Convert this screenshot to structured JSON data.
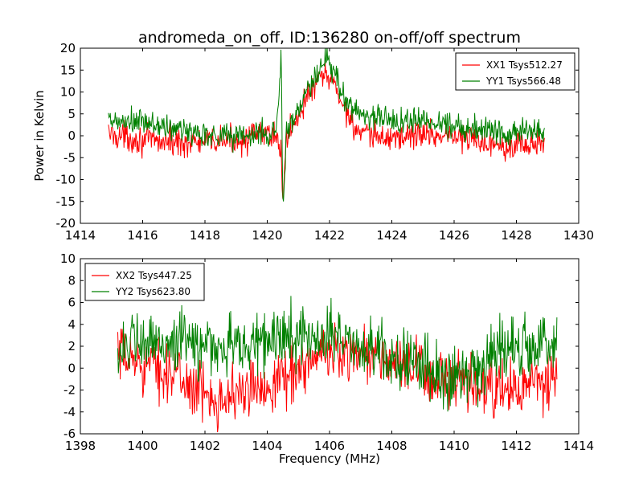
{
  "figure": {
    "title": "andromeda_on_off, ID:136280 on-off/off spectrum"
  },
  "chart_data": [
    {
      "type": "line",
      "title": "andromeda_on_off, ID:136280 on-off/off spectrum",
      "xlabel": "",
      "ylabel": "Power in Kelvin",
      "xlim": [
        1414,
        1430
      ],
      "ylim": [
        -20,
        20
      ],
      "xticks": [
        1414,
        1416,
        1418,
        1420,
        1422,
        1424,
        1426,
        1428,
        1430
      ],
      "yticks": [
        -20,
        -15,
        -10,
        -5,
        0,
        5,
        10,
        15,
        20
      ],
      "legend": {
        "position": "top-right"
      },
      "grid": false,
      "series": [
        {
          "name": "XX1 Tsys512.27",
          "color": "#ff0000",
          "noise": 1.6,
          "x": [
            1414.9,
            1416.0,
            1417.0,
            1418.0,
            1419.0,
            1420.0,
            1420.3,
            1420.45,
            1420.5,
            1420.55,
            1420.6,
            1420.8,
            1421.0,
            1421.3,
            1421.6,
            1421.9,
            1422.2,
            1422.5,
            1423.0,
            1424.0,
            1425.0,
            1426.0,
            1427.0,
            1428.0,
            1428.9
          ],
          "values": [
            0.5,
            -1.0,
            -1.5,
            -1.5,
            -1.0,
            0.5,
            0.5,
            -5,
            -15,
            -8,
            -1,
            2,
            5,
            9,
            12,
            14,
            11,
            6,
            0,
            -0.5,
            0.5,
            0,
            -1.5,
            -2.0,
            -2.0
          ]
        },
        {
          "name": "YY1 Tsys566.48",
          "color": "#008000",
          "noise": 1.6,
          "x": [
            1414.9,
            1416.0,
            1417.0,
            1418.0,
            1419.0,
            1420.0,
            1420.3,
            1420.45,
            1420.5,
            1420.55,
            1420.6,
            1420.8,
            1421.0,
            1421.3,
            1421.6,
            1421.9,
            1422.2,
            1422.5,
            1423.0,
            1424.0,
            1425.0,
            1426.0,
            1427.0,
            1428.0,
            1428.9
          ],
          "values": [
            3,
            3,
            1.5,
            0.5,
            0,
            0.5,
            1,
            20,
            -17,
            -12,
            0,
            3,
            6,
            10,
            14,
            17,
            14,
            8,
            5,
            3.5,
            3.5,
            2.5,
            1.5,
            1.0,
            1.0
          ]
        }
      ]
    },
    {
      "type": "line",
      "title": "",
      "xlabel": "Frequency (MHz)",
      "ylabel": "",
      "xlim": [
        1398,
        1414
      ],
      "ylim": [
        -6,
        10
      ],
      "xticks": [
        1398,
        1400,
        1402,
        1404,
        1406,
        1408,
        1410,
        1412,
        1414
      ],
      "yticks": [
        -6,
        -4,
        -2,
        0,
        2,
        4,
        6,
        8,
        10
      ],
      "legend": {
        "position": "top-left"
      },
      "grid": false,
      "series": [
        {
          "name": "XX2 Tsys447.25",
          "color": "#ff0000",
          "noise": 1.3,
          "x": [
            1399.2,
            1400.0,
            1401.0,
            1402.0,
            1403.0,
            1404.0,
            1405.0,
            1406.0,
            1407.0,
            1408.0,
            1409.0,
            1410.0,
            1411.0,
            1412.0,
            1413.3
          ],
          "values": [
            1.0,
            0.5,
            -0.5,
            -2.5,
            -2.5,
            -1.5,
            0,
            1.5,
            1.5,
            0.5,
            -0.5,
            -1.5,
            -2.0,
            -2.0,
            -1.0
          ]
        },
        {
          "name": "YY2 Tsys623.80",
          "color": "#008000",
          "noise": 1.4,
          "x": [
            1399.2,
            1400.0,
            1401.0,
            1402.0,
            1403.0,
            1404.0,
            1405.0,
            1406.0,
            1407.0,
            1408.0,
            1409.0,
            1410.0,
            1411.0,
            1412.0,
            1413.3
          ],
          "values": [
            2.0,
            2.0,
            2.5,
            2.0,
            2.0,
            2.5,
            3.0,
            3.0,
            2.0,
            1.0,
            0.0,
            -1.0,
            1.0,
            2.0,
            2.5
          ]
        }
      ]
    }
  ]
}
